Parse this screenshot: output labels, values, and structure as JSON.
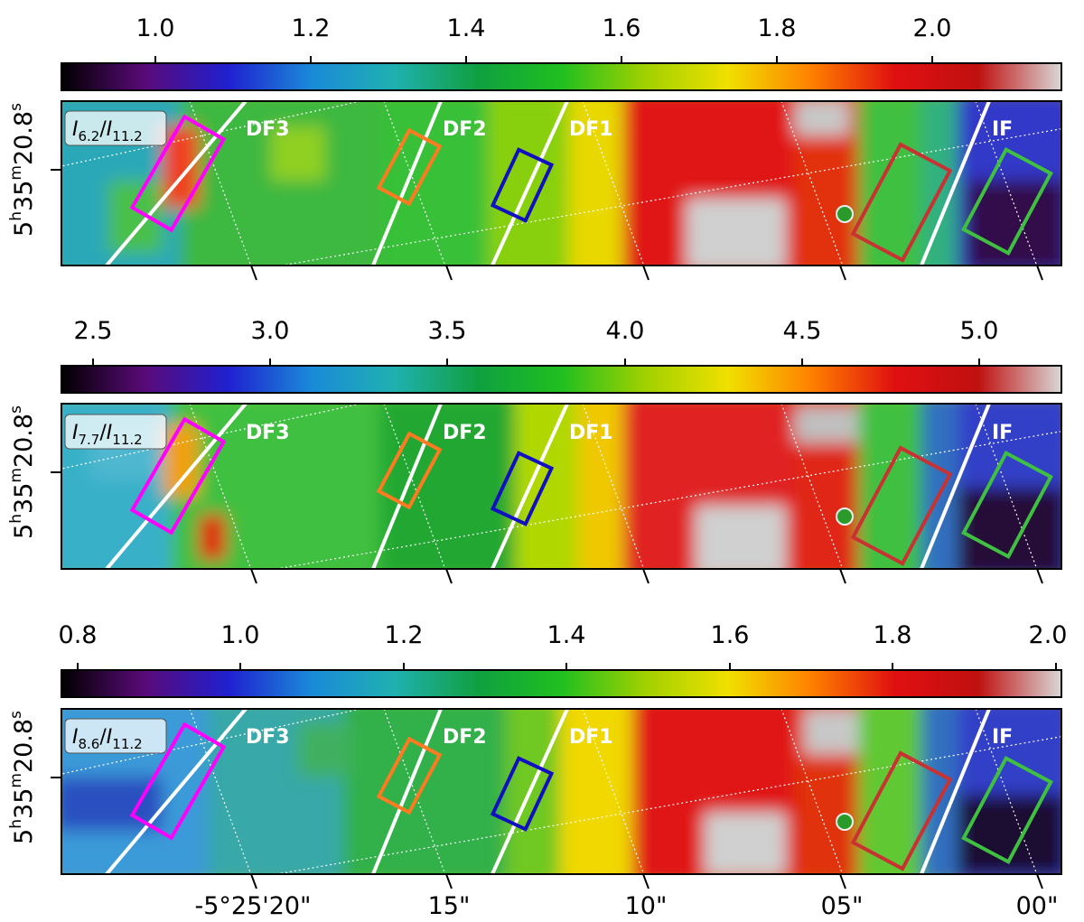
{
  "ra_label": "5h35m20.8s",
  "ra_parts": {
    "h": "5",
    "h_sup": "h",
    "m": "35",
    "m_sup": "m",
    "s": "20.8",
    "s_sup": "s"
  },
  "dec_ticks": [
    "-5°25'20\"",
    "15\"",
    "10\"",
    "05\"",
    "00\""
  ],
  "front_labels": [
    "DF3",
    "DF2",
    "DF1",
    "IF"
  ],
  "colormap": [
    "#000000",
    "#5a0a78",
    "#2020d0",
    "#1a8ad8",
    "#20b0b0",
    "#10a040",
    "#20c020",
    "#a0d000",
    "#f0e000",
    "#ff8000",
    "#e01010",
    "#c01010",
    "#d8d8d8"
  ],
  "box_colors": {
    "df3": "#ff00ff",
    "df2": "#ff7a20",
    "df1": "#1010c0",
    "if_left": "#c83232",
    "if_right": "#40c040"
  },
  "panels": [
    {
      "id": "p62",
      "label_main": "I",
      "label_sub": "6.2",
      "label_sep": "/",
      "label_main2": "I",
      "label_sub2": "11.2",
      "cbar_ticks": [
        "1.0",
        "1.2",
        "1.4",
        "1.6",
        "1.8",
        "2.0"
      ]
    },
    {
      "id": "p77",
      "label_main": "I",
      "label_sub": "7.7",
      "label_sep": "/",
      "label_main2": "I",
      "label_sub2": "11.2",
      "cbar_ticks": [
        "2.5",
        "3.0",
        "3.5",
        "4.0",
        "4.5",
        "5.0"
      ]
    },
    {
      "id": "p86",
      "label_main": "I",
      "label_sub": "8.6",
      "label_sep": "/",
      "label_main2": "I",
      "label_sub2": "11.2",
      "cbar_ticks": [
        "0.8",
        "1.0",
        "1.2",
        "1.4",
        "1.6",
        "1.8",
        "2.0"
      ]
    }
  ]
}
